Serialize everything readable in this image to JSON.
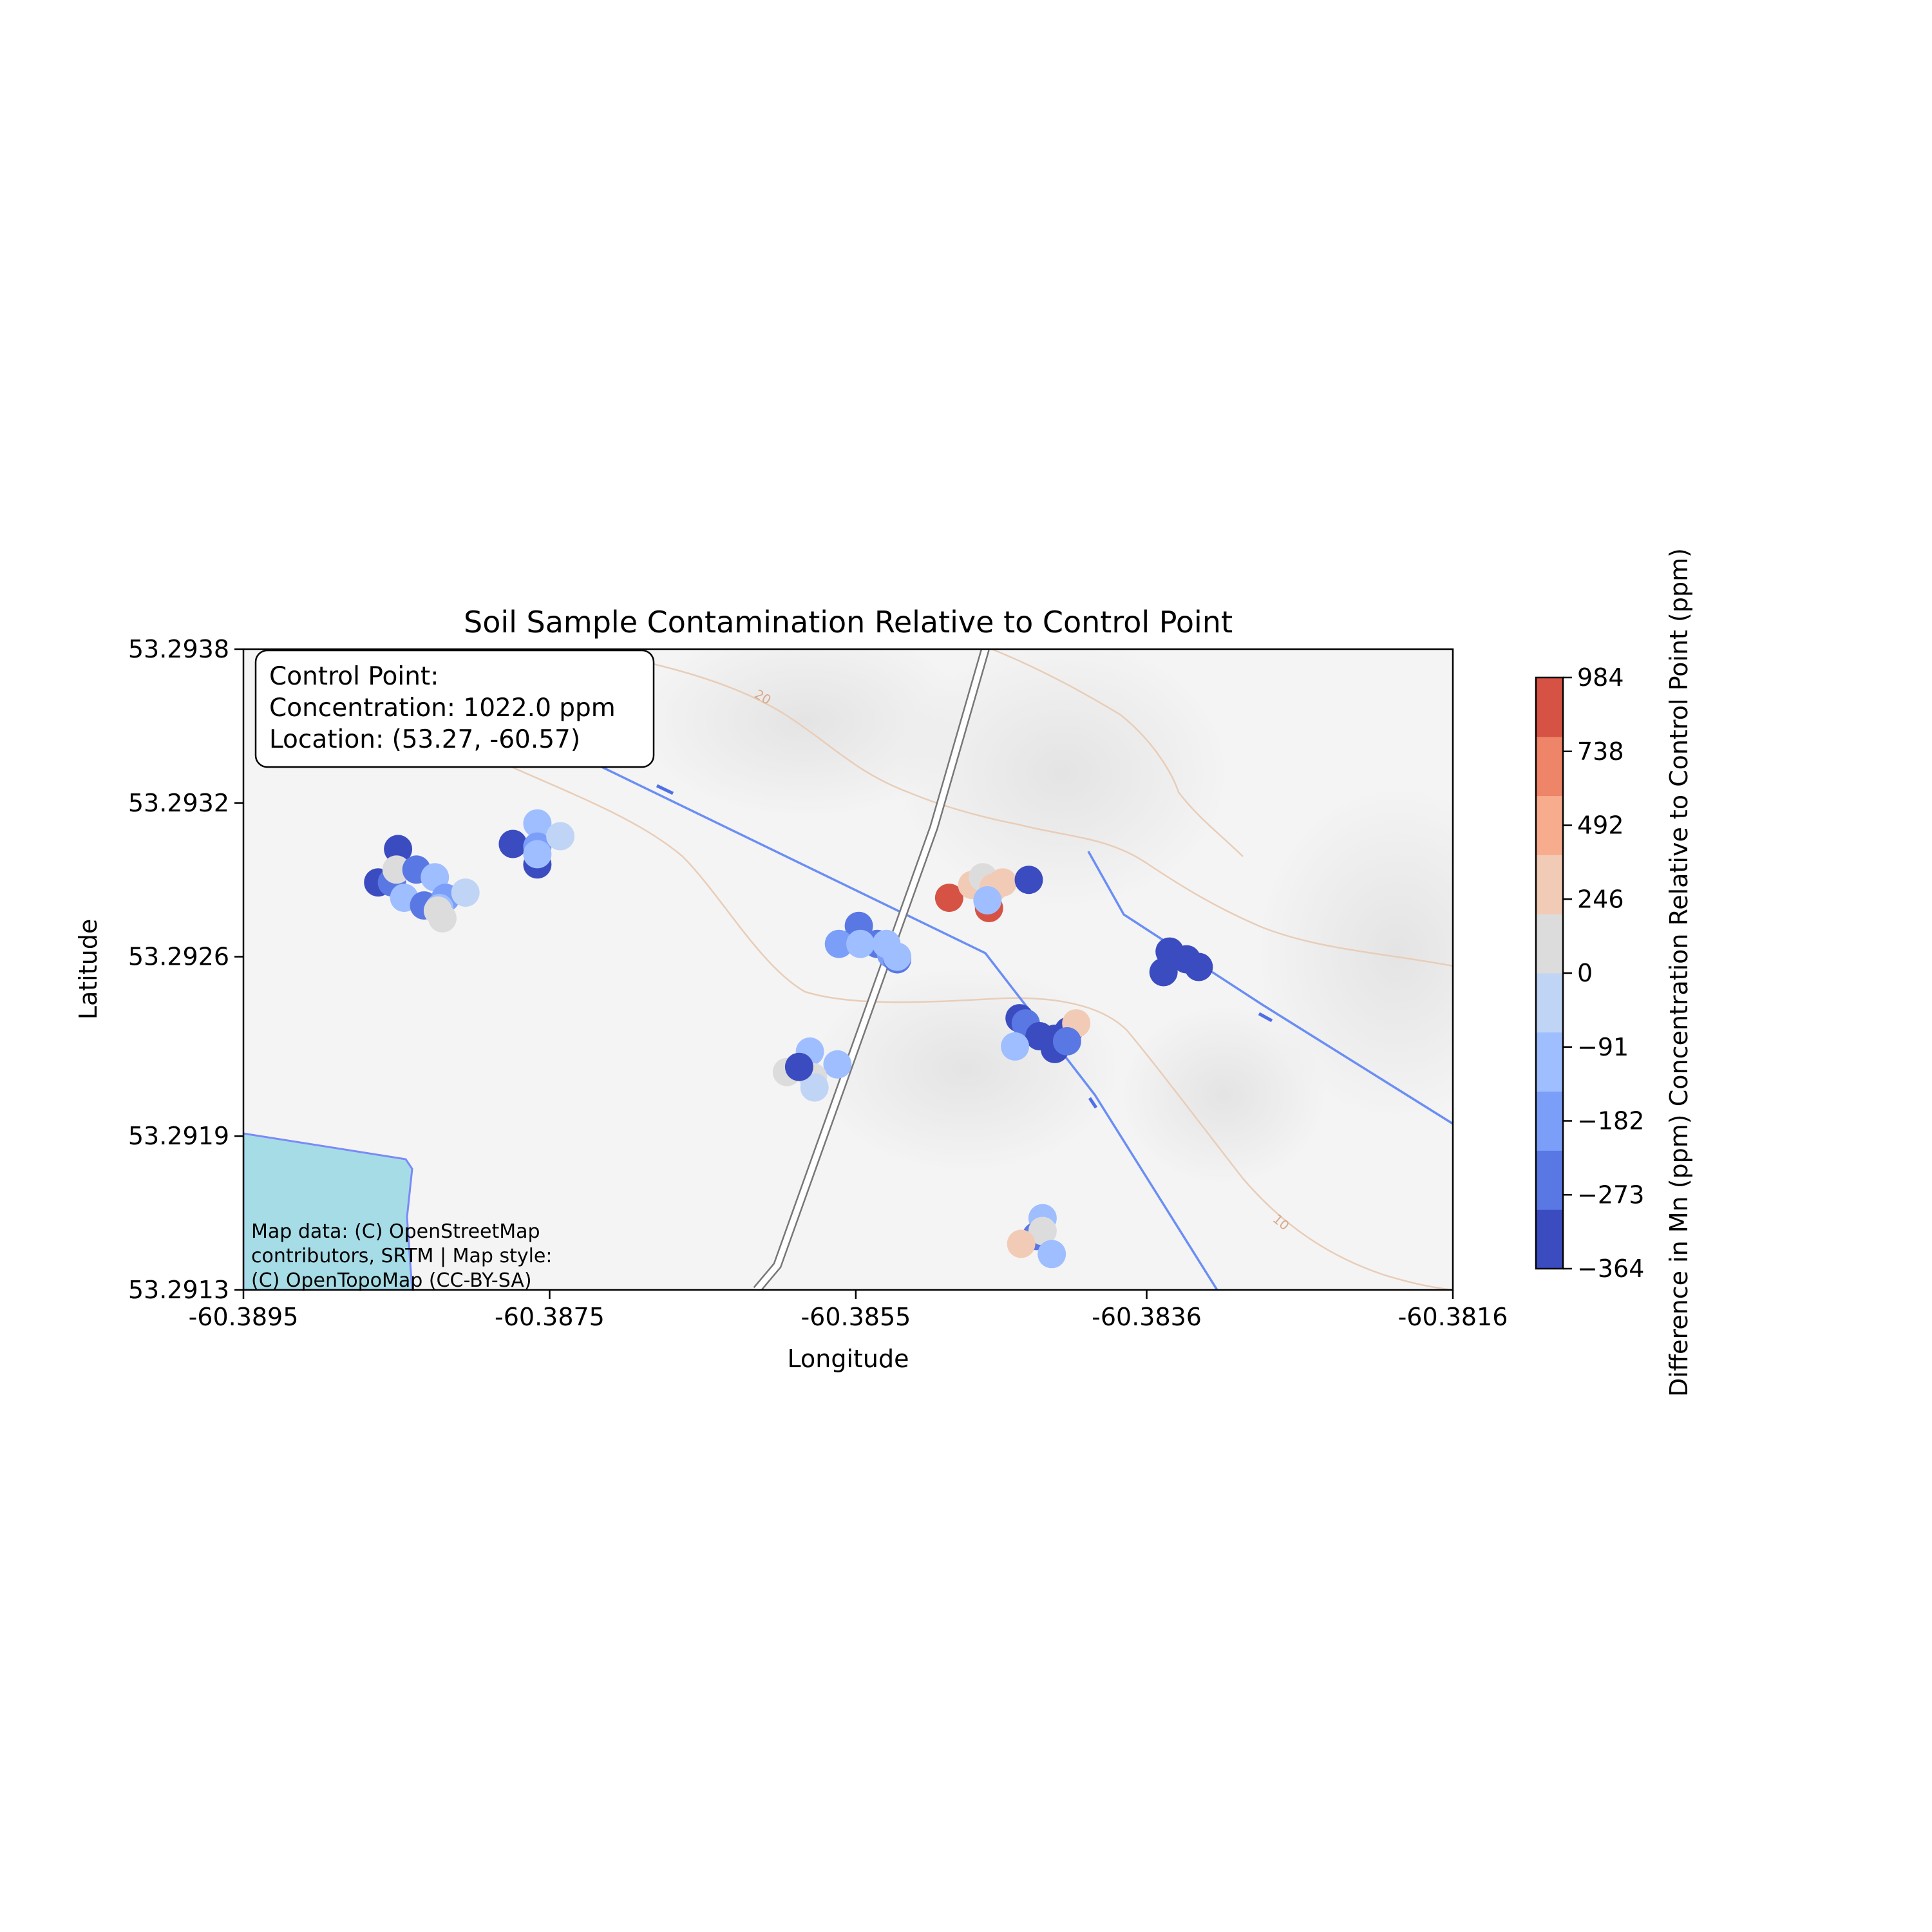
{
  "chart_data": {
    "type": "scatter",
    "title": "Soil Sample Contamination Relative to Control Point",
    "xlabel": "Longitude",
    "ylabel": "Latitude",
    "xlim": [
      -60.3895,
      -60.3816
    ],
    "ylim": [
      53.2913,
      53.2938
    ],
    "x_ticks": [
      "-60.3895",
      "-60.3875",
      "-60.3855",
      "-60.3836",
      "-60.3816"
    ],
    "y_ticks": [
      "53.2913",
      "53.2919",
      "53.2926",
      "53.2932",
      "53.2938"
    ],
    "x_tick_values": [
      -60.3895,
      -60.3875,
      -60.3855,
      -60.3836,
      -60.3816
    ],
    "y_tick_values": [
      53.2913,
      53.2919,
      53.2926,
      53.2932,
      53.2938
    ],
    "colorbar": {
      "label": "Difference in Mn (ppm) Concentration Relative to Control Point (ppm)",
      "tick_labels": [
        "−364",
        "−273",
        "−182",
        "−91",
        "0",
        "246",
        "492",
        "738",
        "984"
      ],
      "tick_values": [
        -364,
        -273,
        -182,
        -91,
        0,
        246,
        492,
        738,
        984
      ],
      "colors": [
        "#3b4cc0",
        "#5a78e4",
        "#7b9ff9",
        "#9ebeff",
        "#c0d4f5",
        "#dddcdc",
        "#f2cbb7",
        "#f7ac8e",
        "#ee8468",
        "#d65244"
      ]
    },
    "annotation": {
      "line1": "Control Point:",
      "line2": "Concentration: 1022.0 ppm",
      "line3": "Location: (53.27, -60.57)"
    },
    "attribution": {
      "line1": "Map data: (C) OpenStreetMap",
      "line2": "contributors, SRTM | Map style:",
      "line3": "(C) OpenTopoMap (CC-BY-SA)"
    },
    "contour_labels": [
      "20",
      "10"
    ],
    "points": [
      {
        "lon": -60.38849,
        "lat": 53.29302,
        "v": -320
      },
      {
        "lon": -60.38862,
        "lat": 53.29289,
        "v": -350
      },
      {
        "lon": -60.38853,
        "lat": 53.29289,
        "v": -240
      },
      {
        "lon": -60.3885,
        "lat": 53.29294,
        "v": 20
      },
      {
        "lon": -60.38837,
        "lat": 53.29294,
        "v": -250
      },
      {
        "lon": -60.38825,
        "lat": 53.29291,
        "v": -130
      },
      {
        "lon": -60.38845,
        "lat": 53.29283,
        "v": -130
      },
      {
        "lon": -60.38832,
        "lat": 53.2928,
        "v": -250
      },
      {
        "lon": -60.38818,
        "lat": 53.29283,
        "v": -180
      },
      {
        "lon": -60.38822,
        "lat": 53.29279,
        "v": -100
      },
      {
        "lon": -60.38805,
        "lat": 53.29285,
        "v": -60
      },
      {
        "lon": -60.3882,
        "lat": 53.29275,
        "v": 40
      },
      {
        "lon": -60.38823,
        "lat": 53.29278,
        "v": 10
      },
      {
        "lon": -60.38774,
        "lat": 53.29304,
        "v": -360
      },
      {
        "lon": -60.38758,
        "lat": 53.29312,
        "v": -120
      },
      {
        "lon": -60.38758,
        "lat": 53.29296,
        "v": -300
      },
      {
        "lon": -60.38758,
        "lat": 53.29303,
        "v": -200
      },
      {
        "lon": -60.38743,
        "lat": 53.29307,
        "v": -50
      },
      {
        "lon": -60.38758,
        "lat": 53.293,
        "v": -110
      },
      {
        "lon": -60.38548,
        "lat": 53.29272,
        "v": -230
      },
      {
        "lon": -60.38536,
        "lat": 53.29265,
        "v": -250
      },
      {
        "lon": -60.38561,
        "lat": 53.29265,
        "v": -200
      },
      {
        "lon": -60.38527,
        "lat": 53.29261,
        "v": -150
      },
      {
        "lon": -60.38547,
        "lat": 53.29265,
        "v": -110
      },
      {
        "lon": -60.38523,
        "lat": 53.29259,
        "v": -220
      },
      {
        "lon": -60.38523,
        "lat": 53.2926,
        "v": -130
      },
      {
        "lon": -60.38489,
        "lat": 53.29283,
        "v": 900
      },
      {
        "lon": -60.38474,
        "lat": 53.29288,
        "v": 240
      },
      {
        "lon": -60.38467,
        "lat": 53.29291,
        "v": 30
      },
      {
        "lon": -60.3846,
        "lat": 53.29287,
        "v": 250
      },
      {
        "lon": -60.38454,
        "lat": 53.29289,
        "v": 300
      },
      {
        "lon": -60.38437,
        "lat": 53.2929,
        "v": -350
      },
      {
        "lon": -60.38463,
        "lat": 53.29279,
        "v": 850
      },
      {
        "lon": -60.38464,
        "lat": 53.29282,
        "v": -110
      },
      {
        "lon": -60.38443,
        "lat": 53.29236,
        "v": -340
      },
      {
        "lon": -60.38439,
        "lat": 53.29234,
        "v": -220
      },
      {
        "lon": -60.3843,
        "lat": 53.29229,
        "v": -300
      },
      {
        "lon": -60.3842,
        "lat": 53.29228,
        "v": -360
      },
      {
        "lon": -60.38411,
        "lat": 53.29231,
        "v": -340
      },
      {
        "lon": -60.38406,
        "lat": 53.29234,
        "v": 300
      },
      {
        "lon": -60.3842,
        "lat": 53.29224,
        "v": -350
      },
      {
        "lon": -60.38412,
        "lat": 53.29227,
        "v": -230
      },
      {
        "lon": -60.38446,
        "lat": 53.29225,
        "v": -120
      },
      {
        "lon": -60.3853,
        "lat": 53.29265,
        "v": -120
      },
      {
        "lon": -60.38345,
        "lat": 53.29262,
        "v": -350
      },
      {
        "lon": -60.38334,
        "lat": 53.29259,
        "v": -350
      },
      {
        "lon": -60.38326,
        "lat": 53.29256,
        "v": -350
      },
      {
        "lon": -60.38349,
        "lat": 53.29254,
        "v": -350
      },
      {
        "lon": -60.3858,
        "lat": 53.29223,
        "v": -120
      },
      {
        "lon": -60.38562,
        "lat": 53.29218,
        "v": -110
      },
      {
        "lon": -60.38595,
        "lat": 53.29215,
        "v": 20
      },
      {
        "lon": -60.38578,
        "lat": 53.29213,
        "v": 15
      },
      {
        "lon": -60.38577,
        "lat": 53.29209,
        "v": -70
      },
      {
        "lon": -60.38587,
        "lat": 53.29217,
        "v": -300
      },
      {
        "lon": -60.38428,
        "lat": 53.29158,
        "v": -130
      },
      {
        "lon": -60.38432,
        "lat": 53.29151,
        "v": -280
      },
      {
        "lon": -60.38428,
        "lat": 53.29153,
        "v": 20
      },
      {
        "lon": -60.38442,
        "lat": 53.29148,
        "v": 300
      },
      {
        "lon": -60.38422,
        "lat": 53.29144,
        "v": -130
      }
    ]
  }
}
